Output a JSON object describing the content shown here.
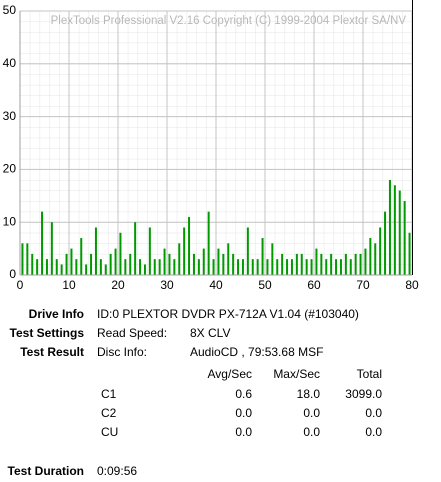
{
  "chart_data": {
    "type": "bar",
    "watermark": "PlexTools Professional V2.16 Copyright (C) 1999-2004 Plextor SA/NV",
    "x": [
      0.5,
      1.5,
      2.5,
      3.5,
      4.5,
      5.5,
      6.5,
      7.5,
      8.5,
      9.5,
      10.5,
      11.5,
      12.5,
      13.5,
      14.5,
      15.5,
      16.5,
      17.5,
      18.5,
      19.5,
      20.5,
      21.5,
      22.5,
      23.5,
      24.5,
      25.5,
      26.5,
      27.5,
      28.5,
      29.5,
      30.5,
      31.5,
      32.5,
      33.5,
      34.5,
      35.5,
      36.5,
      37.5,
      38.5,
      39.5,
      40.5,
      41.5,
      42.5,
      43.5,
      44.5,
      45.5,
      46.5,
      47.5,
      48.5,
      49.5,
      50.5,
      51.5,
      52.5,
      53.5,
      54.5,
      55.5,
      56.5,
      57.5,
      58.5,
      59.5,
      60.5,
      61.5,
      62.5,
      63.5,
      64.5,
      65.5,
      66.5,
      67.5,
      68.5,
      69.5,
      70.5,
      71.5,
      72.5,
      73.5,
      74.5,
      75.5,
      76.5,
      77.5,
      78.5,
      79.5
    ],
    "values": [
      6,
      6,
      4,
      3,
      12,
      3,
      10,
      3,
      2,
      4,
      5,
      3,
      7,
      2,
      4,
      9,
      3,
      2,
      4,
      5,
      8,
      3,
      4,
      10,
      3,
      2,
      9,
      3,
      3,
      5,
      4,
      3,
      6,
      9,
      11,
      4,
      3,
      5,
      12,
      3,
      5,
      4,
      6,
      4,
      3,
      3,
      9,
      3,
      3,
      7,
      3,
      6,
      3,
      4,
      3,
      3,
      4,
      4,
      3,
      3,
      5,
      4,
      3,
      4,
      3,
      3,
      4,
      3,
      4,
      4,
      5,
      7,
      6,
      9,
      12,
      18,
      17,
      16,
      14,
      8
    ],
    "color": "#009900",
    "xlim": [
      0,
      80
    ],
    "xticks": [
      0,
      10,
      20,
      30,
      40,
      50,
      60,
      70,
      80
    ],
    "ylim": [
      0,
      50
    ],
    "yticks": [
      0,
      10,
      20,
      30,
      40,
      50
    ],
    "grid": true
  },
  "report": {
    "drive_info": {
      "label": "Drive Info",
      "value": "ID:0 PLEXTOR DVDR PX-712A V1.04 (#103040)"
    },
    "test_settings": {
      "label": "Test Settings",
      "key": "Read Speed:",
      "value": "8X CLV"
    },
    "test_result": {
      "label": "Test Result",
      "key": "Disc Info:",
      "value": "AudioCD , 79:53.68 MSF"
    },
    "table": {
      "header": [
        "Avg/Sec",
        "Max/Sec",
        "Total"
      ],
      "rows": [
        [
          "C1",
          "0.6",
          "18.0",
          "3099.0"
        ],
        [
          "C2",
          "0.0",
          "0.0",
          "0.0"
        ],
        [
          "CU",
          "0.0",
          "0.0",
          "0.0"
        ]
      ]
    },
    "test_duration": {
      "label": "Test Duration",
      "value": "0:09:56"
    }
  }
}
